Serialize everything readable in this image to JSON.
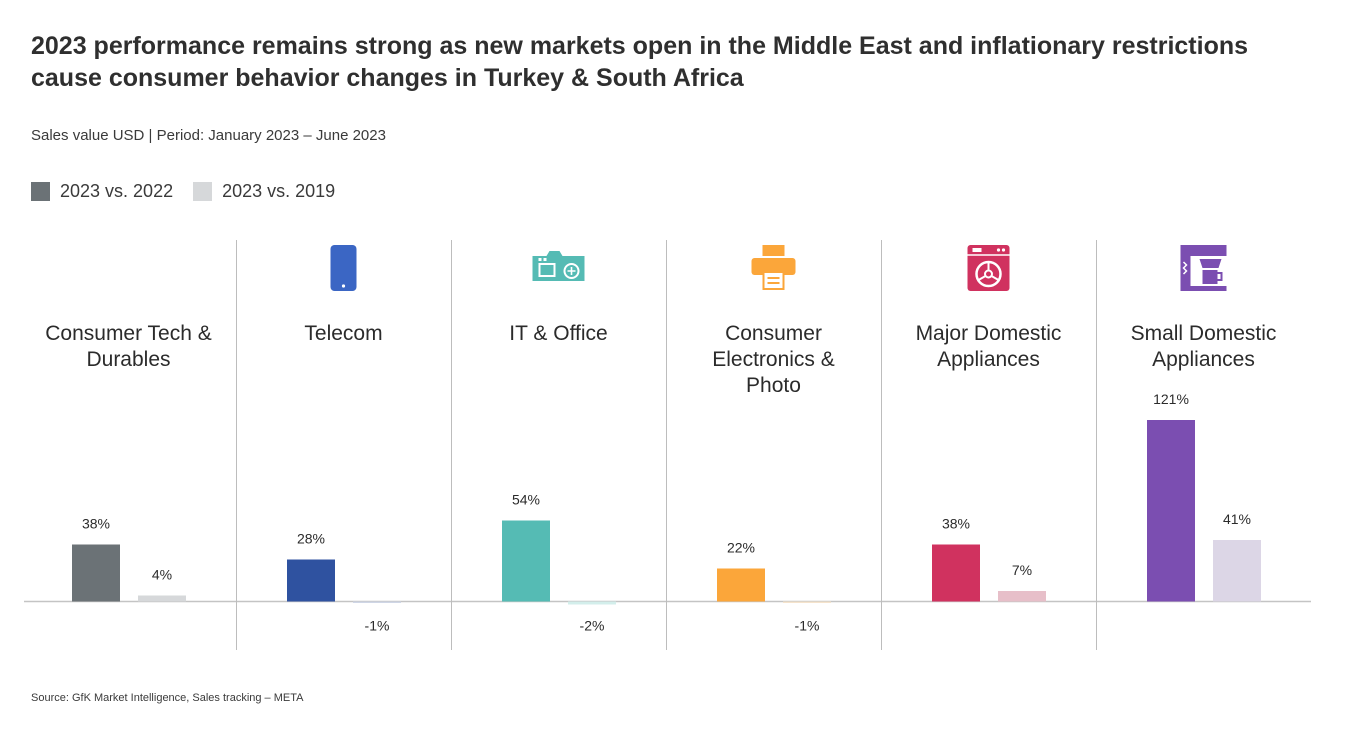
{
  "title": "2023 performance remains strong as new markets open in the Middle East and inflationary restrictions cause consumer behavior changes in Turkey & South Africa",
  "subtitle": "Sales value USD | Period: January 2023 – June 2023",
  "source": "Source: GfK Market Intelligence, Sales tracking – META",
  "legend": [
    {
      "label": "2023 vs. 2022",
      "color": "#6b7276"
    },
    {
      "label": "2023 vs. 2019",
      "color": "#d6d8da"
    }
  ],
  "chart_data": {
    "type": "bar",
    "categories": [
      {
        "name": [
          "Consumer Tech &",
          "Durables"
        ],
        "icon": null
      },
      {
        "name": [
          "Telecom"
        ],
        "icon": "smartphone-icon"
      },
      {
        "name": [
          "IT & Office"
        ],
        "icon": "camera-icon"
      },
      {
        "name": [
          "Consumer",
          "Electronics &",
          "Photo"
        ],
        "icon": "printer-icon"
      },
      {
        "name": [
          "Major Domestic",
          "Appliances"
        ],
        "icon": "washing-machine-icon"
      },
      {
        "name": [
          "Small Domestic",
          "Appliances"
        ],
        "icon": "coffee-machine-icon"
      }
    ],
    "series": [
      {
        "name": "2023 vs. 2022",
        "values": [
          38,
          28,
          54,
          22,
          38,
          121
        ],
        "labels": [
          "38%",
          "28%",
          "54%",
          "22%",
          "38%",
          "121%"
        ]
      },
      {
        "name": "2023 vs. 2019",
        "values": [
          4,
          -1,
          -2,
          -1,
          7,
          41
        ],
        "labels": [
          "4%",
          "-1%",
          "-2%",
          "-1%",
          "7%",
          "41%"
        ]
      }
    ],
    "colors": {
      "primary": [
        "#6b7276",
        "#2f52a0",
        "#55bbb4",
        "#fba63a",
        "#d0325f",
        "#7b4eb1"
      ],
      "secondary": [
        "#d6d8da",
        "#cfd6e6",
        "#d3eeeb",
        "#f5e3cc",
        "#e7bfc9",
        "#dcd6e6"
      ],
      "icons": [
        "",
        "#3b66c4",
        "#55bbb4",
        "#fba63a",
        "#d0325f",
        "#7b4eb1"
      ]
    }
  }
}
